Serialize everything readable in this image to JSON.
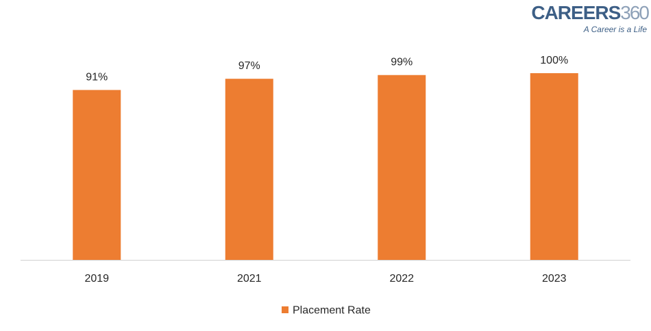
{
  "logo": {
    "main": "CAREERS",
    "number": "360",
    "tagline": "A Career is a Life"
  },
  "chart_data": {
    "type": "bar",
    "categories": [
      "2019",
      "2021",
      "2022",
      "2023"
    ],
    "series": [
      {
        "name": "Placement Rate",
        "values": [
          91,
          97,
          99,
          100
        ],
        "color": "#ed7d31"
      }
    ],
    "data_labels": [
      "91%",
      "97%",
      "99%",
      "100%"
    ],
    "title": "",
    "xlabel": "",
    "ylabel": "",
    "ylim": [
      0,
      100
    ],
    "grid": false,
    "legend": "bottom"
  }
}
